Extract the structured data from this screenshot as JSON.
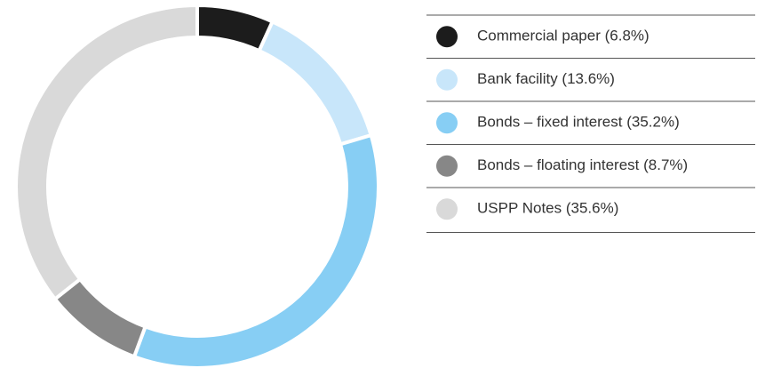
{
  "chart_data": {
    "type": "donut",
    "categories": [
      "Commercial paper (6.8%)",
      "Bank facility (13.6%)",
      "Bonds – fixed interest (35.2%)",
      "Bonds – floating interest (8.7%)",
      "USPP Notes (35.6%)"
    ],
    "values": [
      6.8,
      13.6,
      35.2,
      8.7,
      35.6
    ],
    "colors": [
      "#1c1c1c",
      "#c8e6fa",
      "#87cef4",
      "#878787",
      "#d9d9d9"
    ],
    "legend": "right"
  }
}
